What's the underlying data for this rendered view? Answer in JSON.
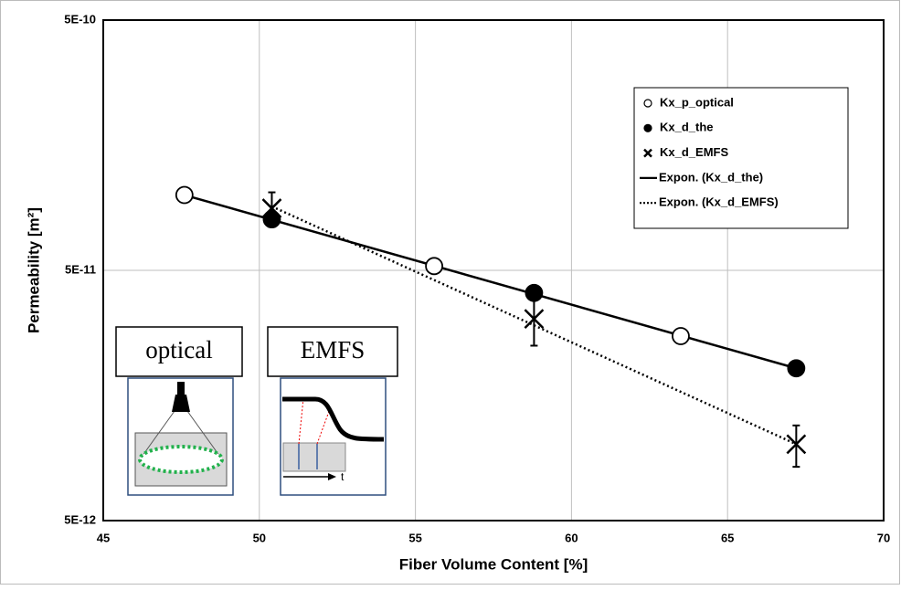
{
  "chart_data": {
    "type": "scatter",
    "xlabel": "Fiber Volume Content [%]",
    "ylabel": "Permeability  [m²]",
    "xlim": [
      45,
      70
    ],
    "xticks": [
      45,
      50,
      55,
      60,
      65,
      70
    ],
    "ylim": [
      5e-12,
      5e-10
    ],
    "yticks": [
      {
        "value": 5e-12,
        "label": "5E-12"
      },
      {
        "value": 5e-11,
        "label": "5E-11"
      },
      {
        "value": 5e-10,
        "label": "5E-10"
      }
    ],
    "yscale": "log",
    "grid": true,
    "legend": "upper right",
    "series": [
      {
        "name": "Kx_p_optical",
        "marker": "open-circle",
        "color": "#000000",
        "x": [
          47.6,
          55.6,
          63.5
        ],
        "values": [
          1e-10,
          5.2e-11,
          2.73e-11
        ]
      },
      {
        "name": "Kx_d_the",
        "marker": "filled-circle",
        "color": "#000000",
        "x": [
          50.4,
          58.8,
          67.2
        ],
        "values": [
          8e-11,
          4.06e-11,
          2.03e-11
        ]
      },
      {
        "name": "Kx_d_EMFS",
        "marker": "cross",
        "color": "#000000",
        "x": [
          50.4,
          58.8,
          67.2
        ],
        "values": [
          8.85e-11,
          3.2e-11,
          1.01e-11
        ],
        "errors": [
          1.4e-11,
          7e-12,
          1.9e-12
        ]
      },
      {
        "name": "Expon. (Kx_d_the)",
        "marker": "solid-line",
        "color": "#000000",
        "x": [
          47.6,
          67.2
        ],
        "values": [
          1e-10,
          2.03e-11
        ]
      },
      {
        "name": "Expon. (Kx_d_EMFS)",
        "marker": "dotted-line",
        "color": "#000000",
        "x": [
          50.4,
          67.2
        ],
        "values": [
          9e-11,
          1.01e-11
        ]
      }
    ],
    "annotations": [
      "optical",
      "EMFS",
      "t"
    ]
  }
}
